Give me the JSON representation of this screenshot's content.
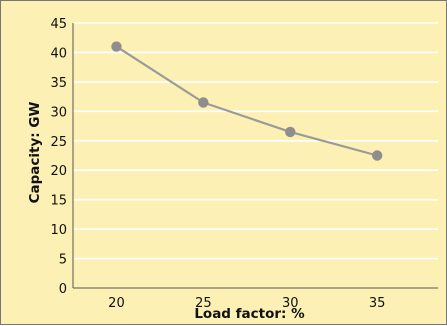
{
  "chart_data": {
    "type": "line",
    "title": "",
    "xlabel": "Load factor: %",
    "ylabel": "Capacity: GW",
    "x": [
      20,
      25,
      30,
      35
    ],
    "xticks": [
      20,
      25,
      30,
      35
    ],
    "xlim": [
      17.5,
      38.5
    ],
    "ylim": [
      0,
      45
    ],
    "yticks": [
      0,
      5,
      10,
      15,
      20,
      25,
      30,
      35,
      40,
      45
    ],
    "grid": "horizontal",
    "legend": "none",
    "series": [
      {
        "values": [
          41,
          31.5,
          26.5,
          22.5
        ]
      }
    ]
  },
  "colors": {
    "background": "#fdf0b4",
    "gridline": "#ffffff",
    "line": "#9a9a9a",
    "marker": "#8e8e8e",
    "axis": "#555555",
    "text": "#111111"
  }
}
